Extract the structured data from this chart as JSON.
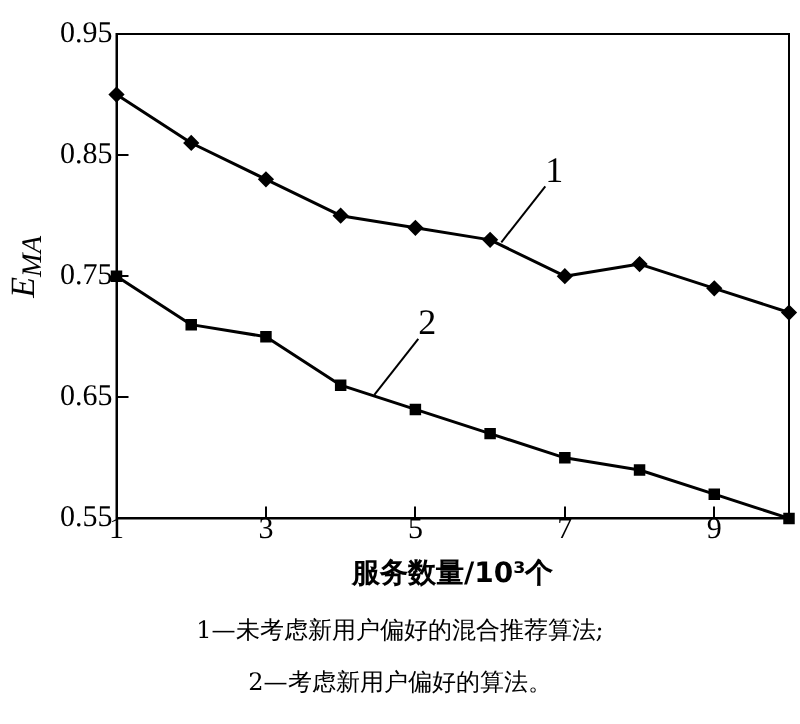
{
  "chart_data": {
    "type": "line",
    "xlabel": "服务数量/10³个",
    "ylabel": "E$_{MA}$",
    "x": [
      1,
      2,
      3,
      4,
      5,
      6,
      7,
      8,
      9,
      10
    ],
    "xlim": [
      1,
      10
    ],
    "xticks": [
      1,
      3,
      5,
      7,
      9
    ],
    "ylim": [
      0.55,
      0.95
    ],
    "yticks": [
      0.55,
      0.65,
      0.75,
      0.85,
      0.95
    ],
    "series": [
      {
        "color": "#000000",
        "marker": "diamond",
        "values": [
          0.9,
          0.86,
          0.83,
          0.8,
          0.79,
          0.78,
          0.75,
          0.76,
          0.74,
          0.72
        ]
      },
      {
        "color": "#000000",
        "marker": "square",
        "values": [
          0.75,
          0.71,
          0.7,
          0.66,
          0.64,
          0.62,
          0.6,
          0.59,
          0.57,
          0.55
        ]
      }
    ],
    "annotations": [
      {
        "text": "1",
        "x": 6.15,
        "y": 0.778
      },
      {
        "text": "2",
        "x": 4.45,
        "y": 0.652
      },
      "1—未考虑新用户偏好的混合推荐算法;",
      "2—考虑新用户偏好的算法。"
    ],
    "grid": false,
    "legend": false
  }
}
